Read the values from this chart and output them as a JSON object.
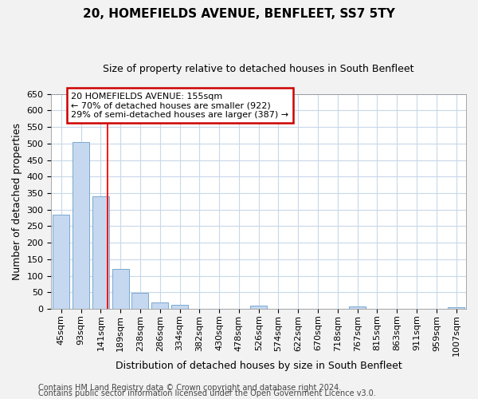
{
  "title": "20, HOMEFIELDS AVENUE, BENFLEET, SS7 5TY",
  "subtitle": "Size of property relative to detached houses in South Benfleet",
  "xlabel": "Distribution of detached houses by size in South Benfleet",
  "ylabel": "Number of detached properties",
  "footer_line1": "Contains HM Land Registry data © Crown copyright and database right 2024.",
  "footer_line2": "Contains public sector information licensed under the Open Government Licence v3.0.",
  "categories": [
    "45sqm",
    "93sqm",
    "141sqm",
    "189sqm",
    "238sqm",
    "286sqm",
    "334sqm",
    "382sqm",
    "430sqm",
    "478sqm",
    "526sqm",
    "574sqm",
    "622sqm",
    "670sqm",
    "718sqm",
    "767sqm",
    "815sqm",
    "863sqm",
    "911sqm",
    "959sqm",
    "1007sqm"
  ],
  "values": [
    285,
    505,
    340,
    120,
    47,
    20,
    12,
    0,
    0,
    0,
    10,
    0,
    0,
    0,
    0,
    8,
    0,
    0,
    0,
    0,
    5
  ],
  "bar_color": "#c5d8f0",
  "bar_edge_color": "#7aa8d0",
  "grid_color": "#c8d8e8",
  "fig_background": "#f2f2f2",
  "plot_background": "#ffffff",
  "red_line_x": 2.35,
  "annotation_line1": "20 HOMEFIELDS AVENUE: 155sqm",
  "annotation_line2": "← 70% of detached houses are smaller (922)",
  "annotation_line3": "29% of semi-detached houses are larger (387) →",
  "annotation_box_color": "#ffffff",
  "annotation_border_color": "#cc0000",
  "ylim": [
    0,
    650
  ],
  "yticks": [
    0,
    50,
    100,
    150,
    200,
    250,
    300,
    350,
    400,
    450,
    500,
    550,
    600,
    650
  ],
  "title_fontsize": 11,
  "subtitle_fontsize": 9,
  "ylabel_fontsize": 9,
  "xlabel_fontsize": 9,
  "tick_fontsize": 8,
  "footer_fontsize": 7
}
